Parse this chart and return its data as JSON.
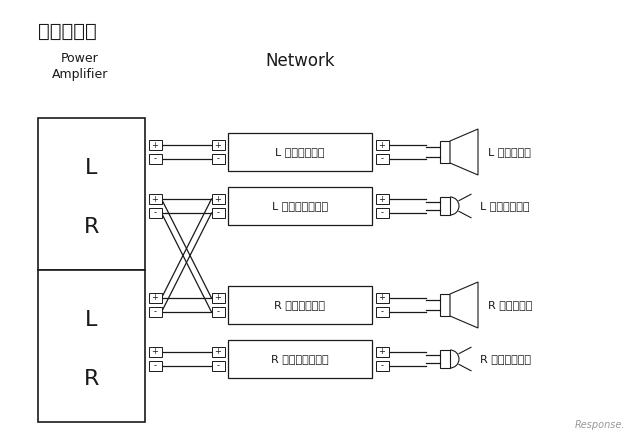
{
  "title": "バイアンプ",
  "label_power_line1": "Power",
  "label_power_line2": "Amplifier",
  "label_network": "Network",
  "bg_color": "#ffffff",
  "line_color": "#1a1a1a",
  "text_color": "#1a1a1a",
  "net_labels": [
    "L ウーファー用",
    "L トゥイーター用",
    "R ウーファー用",
    "R トゥイーター用"
  ],
  "spk_labels": [
    "L ウーファー",
    "L トゥイーター",
    "R ウーファー",
    "R トゥイーター"
  ],
  "watermark": "Response.",
  "figw": 6.4,
  "figh": 4.38,
  "dpi": 100
}
